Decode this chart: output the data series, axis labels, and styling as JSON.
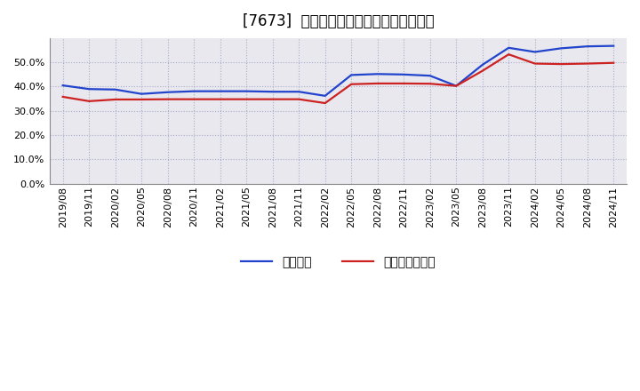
{
  "title": "[7673]  固定比率、固定長期適合率の推移",
  "x_labels": [
    "2019/08",
    "2019/11",
    "2020/02",
    "2020/05",
    "2020/08",
    "2020/11",
    "2021/02",
    "2021/05",
    "2021/08",
    "2021/11",
    "2022/02",
    "2022/05",
    "2022/08",
    "2022/11",
    "2023/02",
    "2023/05",
    "2023/08",
    "2023/11",
    "2024/02",
    "2024/05",
    "2024/08",
    "2024/11"
  ],
  "fixed_ratio": [
    0.405,
    0.39,
    0.388,
    0.37,
    0.377,
    0.381,
    0.381,
    0.381,
    0.379,
    0.379,
    0.362,
    0.448,
    0.452,
    0.45,
    0.445,
    0.403,
    0.49,
    0.56,
    0.543,
    0.558,
    0.566,
    0.568
  ],
  "fixed_long_ratio": [
    0.358,
    0.34,
    0.347,
    0.347,
    0.348,
    0.348,
    0.348,
    0.348,
    0.348,
    0.348,
    0.332,
    0.41,
    0.413,
    0.413,
    0.412,
    0.403,
    0.465,
    0.533,
    0.495,
    0.493,
    0.495,
    0.498
  ],
  "ylim": [
    0.0,
    0.6
  ],
  "yticks": [
    0.0,
    0.1,
    0.2,
    0.3,
    0.4,
    0.5
  ],
  "line_color_blue": "#2244cc",
  "line_color_red": "#cc2222",
  "bg_color": "#ffffff",
  "plot_bg_color": "#e8e8ee",
  "grid_color": "#aaaacc",
  "legend_label_blue": "固定比率",
  "legend_label_red": "固定長期適合率",
  "title_fontsize": 12,
  "tick_fontsize": 8,
  "legend_fontsize": 10,
  "line_width": 1.6
}
